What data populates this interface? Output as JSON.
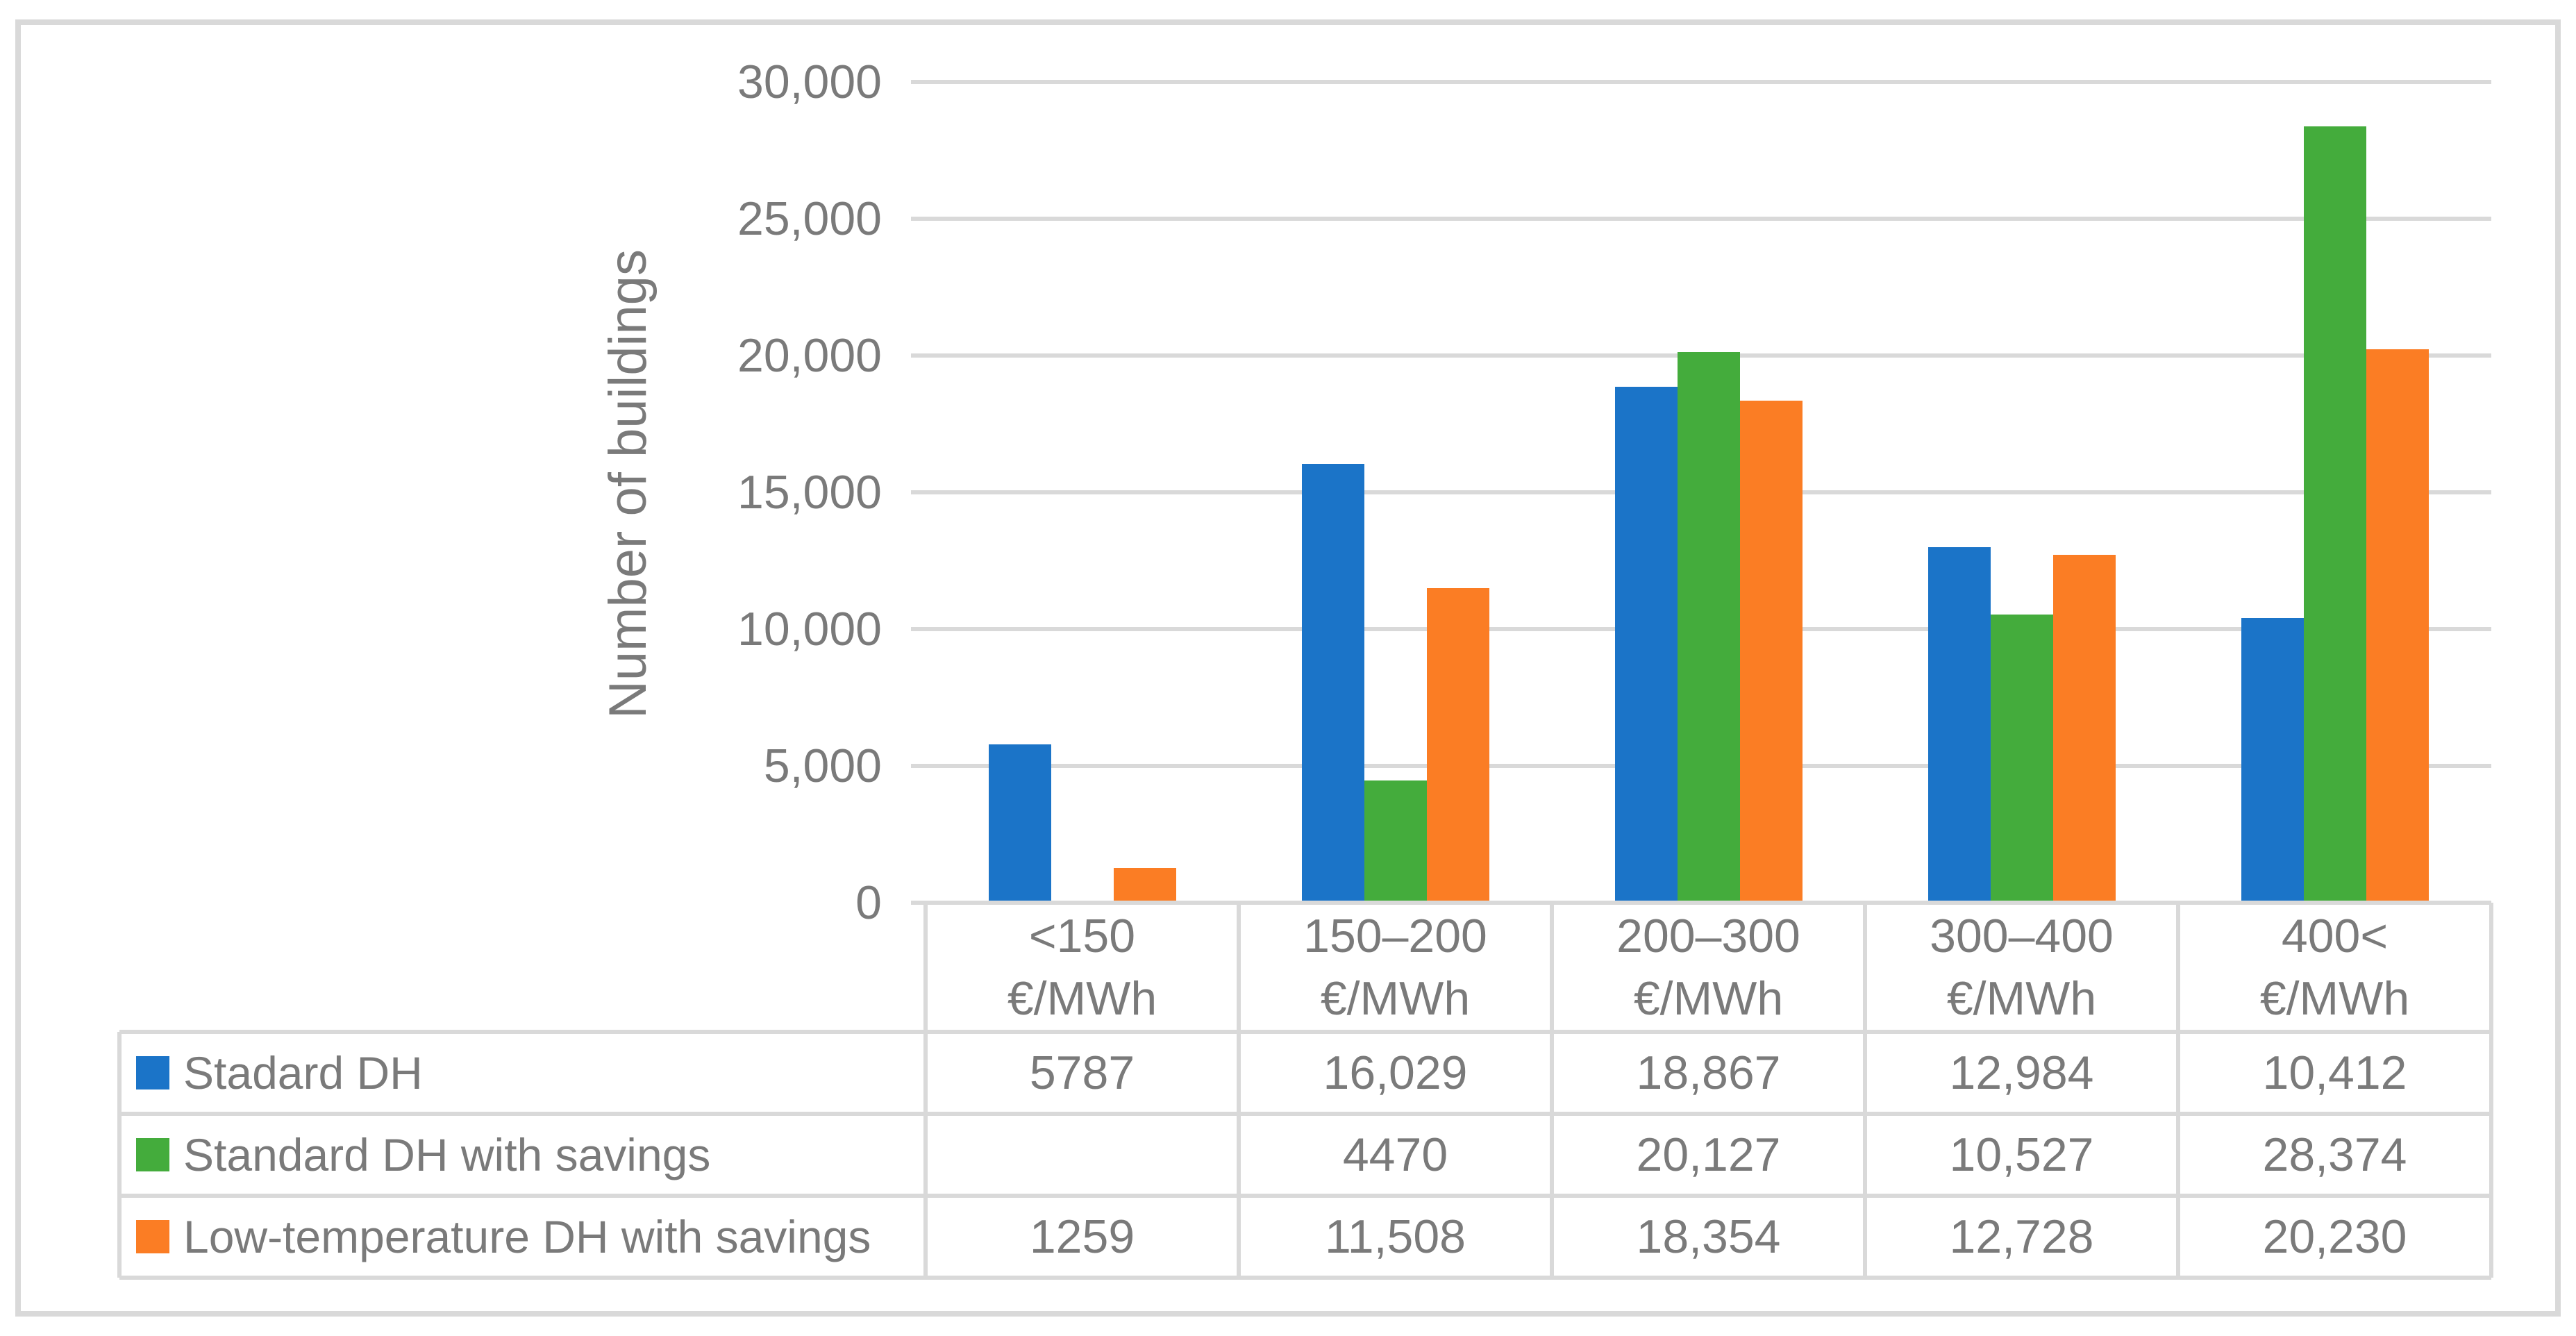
{
  "chart_data": {
    "type": "bar",
    "title": "",
    "xlabel": "",
    "ylabel": "Number of buildings",
    "ylim": [
      0,
      30000
    ],
    "ytick_step": 5000,
    "ytick_labels": [
      "0",
      "5,000",
      "10,000",
      "15,000",
      "20,000",
      "25,000",
      "30,000"
    ],
    "grid": "horizontal",
    "legend_position": "data-table-below-plot",
    "categories": [
      {
        "range": "<150",
        "unit": "€/MWh"
      },
      {
        "range": "150–200",
        "unit": "€/MWh"
      },
      {
        "range": "200–300",
        "unit": "€/MWh"
      },
      {
        "range": "300–400",
        "unit": "€/MWh"
      },
      {
        "range": "400<",
        "unit": "€/MWh"
      }
    ],
    "series": [
      {
        "name": "Stadard DH",
        "color": "#1b74c8",
        "values": [
          5787,
          16029,
          18867,
          12984,
          10412
        ],
        "display": [
          "5787",
          "16,029",
          "18,867",
          "12,984",
          "10,412"
        ]
      },
      {
        "name": "Standard DH with savings",
        "color": "#44ac3c",
        "values": [
          null,
          4470,
          20127,
          10527,
          28374
        ],
        "display": [
          "",
          "4470",
          "20,127",
          "10,527",
          "28,374"
        ]
      },
      {
        "name": "Low-temperature DH with savings",
        "color": "#fb7d24",
        "values": [
          1259,
          11508,
          18354,
          12728,
          20230
        ],
        "display": [
          "1259",
          "11,508",
          "18,354",
          "12,728",
          "20,230"
        ]
      }
    ],
    "colors": {
      "gridline": "#d9d9d9",
      "table_border": "#d9d9d9",
      "frame_border": "#d9d9d9",
      "text": "#7a7a7a"
    }
  }
}
